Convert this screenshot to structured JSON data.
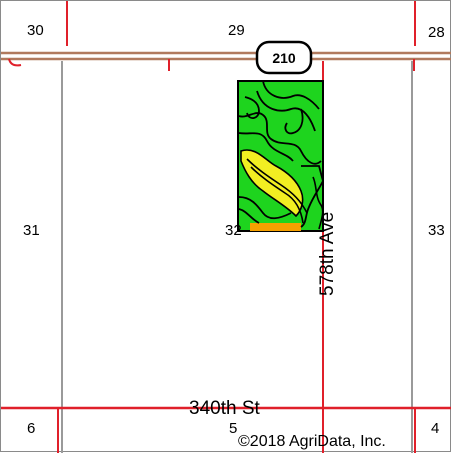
{
  "map": {
    "section_numbers": {
      "s30": "30",
      "s29": "29",
      "s28": "28",
      "s31": "31",
      "s32": "32",
      "s33": "33",
      "s6": "6",
      "s5": "5",
      "s4": "4"
    },
    "highway_shield": "210",
    "roads": {
      "east_west": "340th St",
      "north_south": "578th Ave"
    },
    "copyright": "©2018 AgriData, Inc."
  },
  "colors": {
    "road_red": "#e0202a",
    "highway_brown": "#b07a5e",
    "section_line_gray": "#9a9a9a",
    "soil_green": "#1ed41e",
    "soil_yellow": "#f2ee22",
    "soil_orange": "#f5a000"
  }
}
